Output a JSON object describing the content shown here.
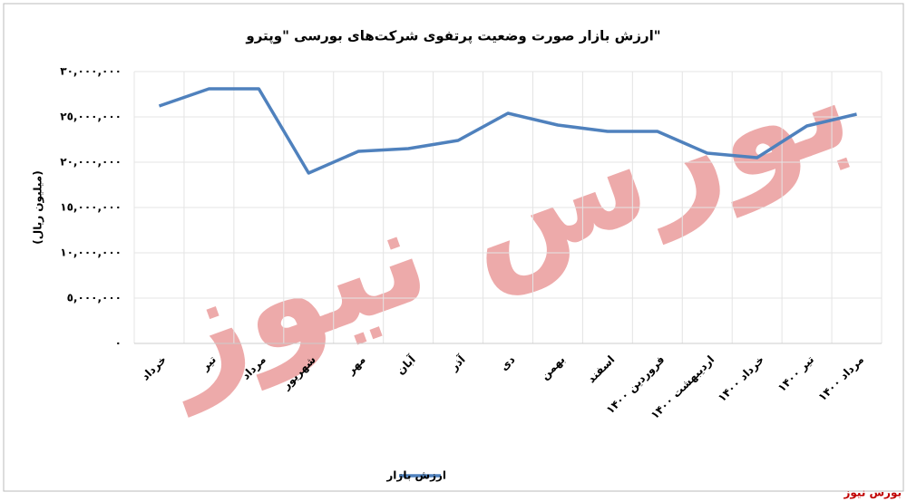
{
  "chart_data": {
    "type": "line",
    "title": "ارزش بازار صورت وضعیت پرتفوی شرکت‌های بورسی \"وپترو\"",
    "y_label": "(میلیون ریال)",
    "categories": [
      "خرداد",
      "تیر",
      "مرداد",
      "شهریور",
      "مهر",
      "آبان",
      "آذر",
      "دی",
      "بهمن",
      "اسفند",
      "فروردین ۱۴۰۰",
      "اردیبهشت ۱۴۰۰",
      "خرداد ۱۴۰۰",
      "تیر ۱۴۰۰",
      "مرداد ۱۴۰۰"
    ],
    "series": [
      {
        "name": "ارزش بازار",
        "color": "#4f81bd",
        "values": [
          26200000,
          28100000,
          28100000,
          18800000,
          21200000,
          21500000,
          22400000,
          25400000,
          24100000,
          23400000,
          23400000,
          21000000,
          20500000,
          24000000,
          25300000
        ]
      }
    ],
    "ylim": [
      0,
      30000000
    ],
    "yticks": [
      {
        "value": 0,
        "label": "٠"
      },
      {
        "value": 5000000,
        "label": "٥,٠٠٠,٠٠٠"
      },
      {
        "value": 10000000,
        "label": "١٠,٠٠٠,٠٠٠"
      },
      {
        "value": 15000000,
        "label": "١٥,٠٠٠,٠٠٠"
      },
      {
        "value": 20000000,
        "label": "٢٠,٠٠٠,٠٠٠"
      },
      {
        "value": 25000000,
        "label": "٢٥,٠٠٠,٠٠٠"
      },
      {
        "value": 30000000,
        "label": "٣٠,٠٠٠,٠٠٠"
      }
    ],
    "grid": true,
    "legend": "bottom",
    "watermark": "بورس نیوز",
    "credit": "بورس نیوز"
  }
}
